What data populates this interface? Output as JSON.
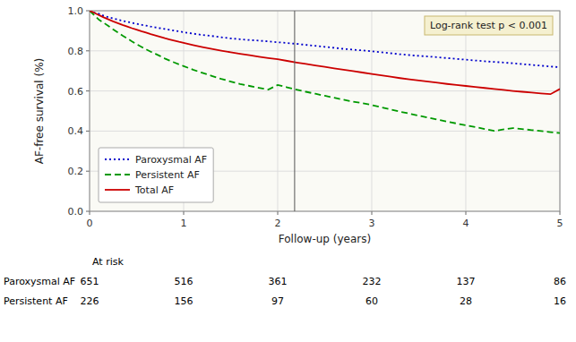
{
  "chart_data": {
    "type": "line",
    "xlabel": "Follow-up (years)",
    "ylabel": "AF-free survival (%)",
    "xlim": [
      0,
      5
    ],
    "ylim": [
      0.0,
      1.0
    ],
    "xticks": [
      0,
      1,
      2,
      3,
      4,
      5
    ],
    "yticks": [
      {
        "value": 0.0,
        "label": "0.0"
      },
      0.2,
      0.4,
      0.6,
      0.8,
      {
        "value": 1.0,
        "label": "1.0"
      }
    ],
    "grid": true,
    "legend": "lower left",
    "annotation": "Log-rank test p < 0.001",
    "median_followup_x": 2.18,
    "series": [
      {
        "name": "Paroxysmal AF",
        "color": "#0000cc",
        "line_style": "dotted",
        "x": [
          0,
          0.05,
          0.1,
          0.15,
          0.2,
          0.25,
          0.3,
          0.35,
          0.4,
          0.45,
          0.5,
          0.55,
          0.6,
          0.65,
          0.7,
          0.75,
          0.8,
          0.85,
          0.9,
          0.95,
          1.0,
          1.1,
          1.2,
          1.3,
          1.4,
          1.5,
          1.6,
          1.7,
          1.8,
          1.9,
          2.0,
          2.1,
          2.2,
          2.3,
          2.4,
          2.5,
          2.6,
          2.7,
          2.8,
          2.9,
          3.0,
          3.1,
          3.2,
          3.3,
          3.4,
          3.5,
          3.6,
          3.7,
          3.8,
          3.9,
          4.0,
          4.1,
          4.2,
          4.3,
          4.4,
          4.5,
          4.6,
          4.7,
          4.8,
          4.9,
          5.0
        ],
        "values": [
          1.0,
          0.99,
          0.985,
          0.975,
          0.968,
          0.962,
          0.956,
          0.95,
          0.945,
          0.94,
          0.935,
          0.93,
          0.926,
          0.921,
          0.917,
          0.913,
          0.909,
          0.905,
          0.901,
          0.897,
          0.893,
          0.886,
          0.879,
          0.874,
          0.868,
          0.862,
          0.858,
          0.854,
          0.851,
          0.847,
          0.843,
          0.839,
          0.835,
          0.83,
          0.825,
          0.82,
          0.815,
          0.81,
          0.806,
          0.802,
          0.798,
          0.793,
          0.788,
          0.783,
          0.779,
          0.775,
          0.772,
          0.768,
          0.764,
          0.76,
          0.756,
          0.752,
          0.748,
          0.745,
          0.742,
          0.738,
          0.734,
          0.73,
          0.726,
          0.722,
          0.718
        ]
      },
      {
        "name": "Persistent AF",
        "color": "#009900",
        "line_style": "dashed",
        "x": [
          0,
          0.05,
          0.1,
          0.15,
          0.2,
          0.25,
          0.3,
          0.35,
          0.4,
          0.45,
          0.5,
          0.55,
          0.6,
          0.65,
          0.7,
          0.75,
          0.8,
          0.85,
          0.9,
          0.95,
          1.0,
          1.1,
          1.2,
          1.3,
          1.4,
          1.5,
          1.6,
          1.7,
          1.8,
          1.9,
          2.0,
          2.1,
          2.2,
          2.3,
          2.4,
          2.5,
          2.6,
          2.7,
          2.8,
          2.9,
          3.0,
          3.1,
          3.2,
          3.3,
          3.4,
          3.5,
          3.6,
          3.7,
          3.8,
          3.9,
          4.0,
          4.1,
          4.2,
          4.3,
          4.5,
          4.7,
          4.9,
          5.0
        ],
        "values": [
          1.0,
          0.978,
          0.955,
          0.94,
          0.924,
          0.907,
          0.892,
          0.876,
          0.862,
          0.847,
          0.833,
          0.82,
          0.808,
          0.796,
          0.785,
          0.774,
          0.762,
          0.752,
          0.742,
          0.733,
          0.724,
          0.706,
          0.69,
          0.675,
          0.66,
          0.647,
          0.635,
          0.625,
          0.616,
          0.607,
          0.63,
          0.618,
          0.607,
          0.596,
          0.586,
          0.576,
          0.566,
          0.556,
          0.547,
          0.539,
          0.53,
          0.519,
          0.508,
          0.497,
          0.487,
          0.477,
          0.467,
          0.457,
          0.447,
          0.438,
          0.429,
          0.42,
          0.41,
          0.401,
          0.415,
          0.405,
          0.395,
          0.39
        ]
      },
      {
        "name": "Total AF",
        "color": "#cc0000",
        "line_style": "solid",
        "x": [
          0,
          0.05,
          0.1,
          0.15,
          0.2,
          0.25,
          0.3,
          0.35,
          0.4,
          0.45,
          0.5,
          0.55,
          0.6,
          0.65,
          0.7,
          0.75,
          0.8,
          0.85,
          0.9,
          0.95,
          1.0,
          1.1,
          1.2,
          1.3,
          1.4,
          1.5,
          1.6,
          1.7,
          1.8,
          1.9,
          2.0,
          2.1,
          2.2,
          2.3,
          2.4,
          2.5,
          2.6,
          2.7,
          2.8,
          2.9,
          3.0,
          3.1,
          3.2,
          3.3,
          3.4,
          3.5,
          3.6,
          3.7,
          3.8,
          3.9,
          4.0,
          4.1,
          4.2,
          4.3,
          4.4,
          4.5,
          4.6,
          4.7,
          4.8,
          4.9,
          5.0
        ],
        "values": [
          1.0,
          0.99,
          0.978,
          0.967,
          0.957,
          0.947,
          0.938,
          0.929,
          0.921,
          0.913,
          0.906,
          0.898,
          0.891,
          0.883,
          0.877,
          0.87,
          0.863,
          0.857,
          0.851,
          0.845,
          0.84,
          0.829,
          0.819,
          0.81,
          0.801,
          0.793,
          0.785,
          0.778,
          0.771,
          0.764,
          0.758,
          0.75,
          0.742,
          0.735,
          0.727,
          0.72,
          0.713,
          0.706,
          0.699,
          0.692,
          0.685,
          0.678,
          0.671,
          0.664,
          0.658,
          0.652,
          0.647,
          0.641,
          0.635,
          0.63,
          0.625,
          0.62,
          0.615,
          0.61,
          0.605,
          0.6,
          0.596,
          0.592,
          0.588,
          0.584,
          0.61
        ]
      }
    ],
    "at_risk": {
      "header": "At risk",
      "x": [
        0,
        1,
        2,
        3,
        4,
        5
      ],
      "rows": [
        {
          "name": "Paroxysmal AF",
          "values": [
            651,
            516,
            361,
            232,
            137,
            86
          ]
        },
        {
          "name": "Persistent AF",
          "values": [
            226,
            156,
            97,
            60,
            28,
            16
          ]
        }
      ]
    }
  }
}
